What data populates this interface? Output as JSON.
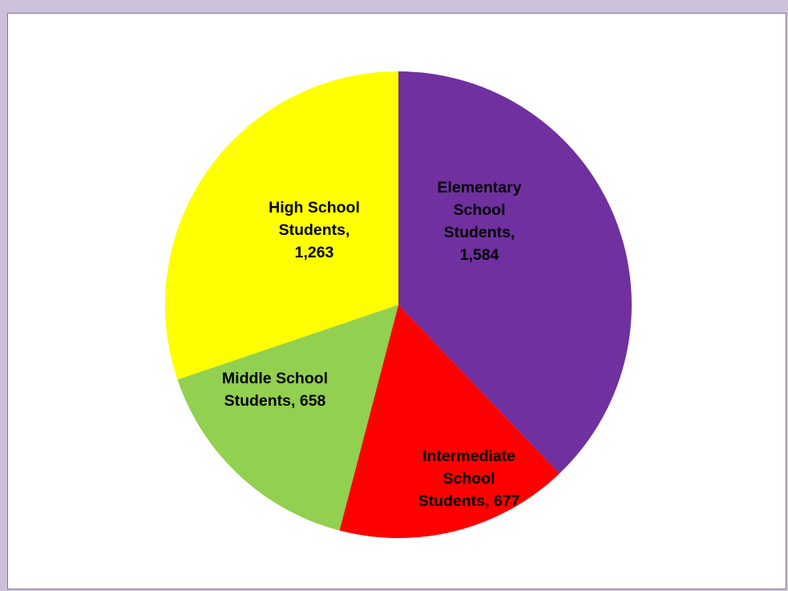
{
  "chart_data": {
    "type": "pie",
    "title": "",
    "categories": [
      "Elementary School Students",
      "Intermediate School Students",
      "Middle School Students",
      "High School Students"
    ],
    "values": [
      1584,
      677,
      658,
      1263
    ],
    "value_labels": [
      "1,584",
      "677",
      "658",
      "1,263"
    ],
    "colors": [
      "#7030a0",
      "#ff0000",
      "#92d050",
      "#ffff00"
    ],
    "label_lines": [
      [
        "Elementary",
        "School",
        "Students,",
        "1,584"
      ],
      [
        "Intermediate",
        "School",
        "Students, 677"
      ],
      [
        "Middle School",
        "Students, 658"
      ],
      [
        "High School",
        "Students,",
        "1,263"
      ]
    ],
    "start_angle_deg": 0,
    "direction": "clockwise",
    "legend": "none"
  },
  "page": {
    "background": "#ccc0da",
    "panel_background": "#ffffff"
  }
}
